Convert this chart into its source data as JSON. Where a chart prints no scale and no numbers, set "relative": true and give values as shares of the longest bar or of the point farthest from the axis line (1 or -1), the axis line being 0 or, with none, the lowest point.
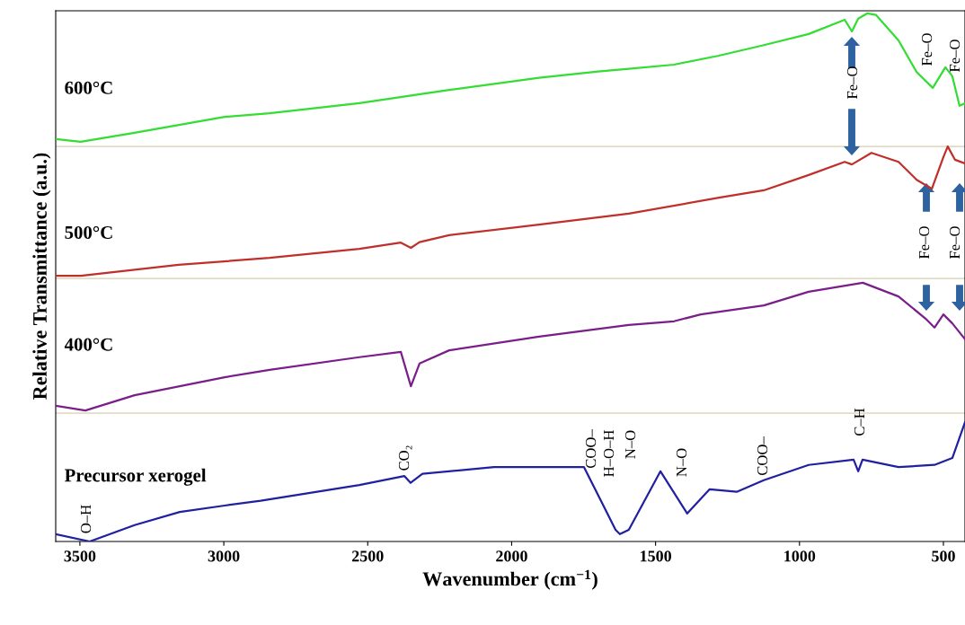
{
  "chart_data": {
    "type": "line",
    "relative": true,
    "xlabel": "Wavenumber (cm$^{−1}$)",
    "ylabel": "Relative Transmittance (a.u.)",
    "xlim": [
      3584,
      425
    ],
    "xticks": [
      3500,
      3000,
      2500,
      2000,
      1500,
      1000,
      500
    ],
    "legend": false,
    "grid": false,
    "series": [
      {
        "name": "600°C",
        "color": "#33dd33",
        "x": [
          3584,
          3497,
          3310,
          2997,
          2841,
          2529,
          2217,
          1905,
          1700,
          1593,
          1436,
          1280,
          1124,
          968,
          843,
          818,
          796,
          765,
          734,
          656,
          593,
          537,
          493,
          469,
          444,
          425
        ],
        "values": [
          0.762,
          0.757,
          0.774,
          0.804,
          0.811,
          0.83,
          0.855,
          0.878,
          0.89,
          0.895,
          0.903,
          0.92,
          0.94,
          0.961,
          0.988,
          0.966,
          0.99,
          1.0,
          0.997,
          0.949,
          0.889,
          0.859,
          0.898,
          0.881,
          0.825,
          0.83
        ]
      },
      {
        "name": "500°C",
        "color": "#c0302a",
        "x": [
          3584,
          3497,
          3157,
          2841,
          2529,
          2385,
          2350,
          2320,
          2217,
          1905,
          1593,
          1280,
          1124,
          968,
          843,
          818,
          750,
          656,
          593,
          540,
          500,
          485,
          460,
          425
        ],
        "values": [
          0.503,
          0.503,
          0.524,
          0.537,
          0.554,
          0.566,
          0.556,
          0.567,
          0.58,
          0.6,
          0.621,
          0.651,
          0.665,
          0.694,
          0.719,
          0.714,
          0.736,
          0.719,
          0.685,
          0.668,
          0.728,
          0.748,
          0.723,
          0.716
        ]
      },
      {
        "name": "400°C",
        "color": "#7a1f8a",
        "x": [
          3584,
          3481,
          3310,
          2997,
          2841,
          2529,
          2385,
          2350,
          2320,
          2217,
          1905,
          1593,
          1436,
          1343,
          1124,
          968,
          780,
          656,
          562,
          531,
          500,
          469,
          425
        ],
        "values": [
          0.257,
          0.248,
          0.277,
          0.311,
          0.325,
          0.349,
          0.359,
          0.294,
          0.337,
          0.362,
          0.388,
          0.41,
          0.417,
          0.43,
          0.447,
          0.473,
          0.49,
          0.464,
          0.422,
          0.405,
          0.43,
          0.413,
          0.383
        ]
      },
      {
        "name": "Precursor xerogel",
        "color": "#2020a0",
        "x": [
          3584,
          3466,
          3310,
          3153,
          2997,
          2872,
          2529,
          2373,
          2351,
          2310,
          2061,
          1749,
          1686,
          1639,
          1624,
          1593,
          1483,
          1390,
          1312,
          1218,
          1124,
          968,
          812,
          796,
          781,
          656,
          531,
          469,
          425
        ],
        "values": [
          0.014,
          0.0,
          0.031,
          0.056,
          0.068,
          0.077,
          0.107,
          0.124,
          0.111,
          0.128,
          0.141,
          0.141,
          0.073,
          0.022,
          0.014,
          0.022,
          0.133,
          0.053,
          0.099,
          0.094,
          0.116,
          0.145,
          0.155,
          0.133,
          0.155,
          0.141,
          0.145,
          0.158,
          0.226
        ]
      }
    ],
    "ref_lines": [
      {
        "axis": "y",
        "value": 0.748,
        "color": "#e2dcc4"
      },
      {
        "axis": "y",
        "value": 0.498,
        "color": "#e2dcc4"
      },
      {
        "axis": "y",
        "value": 0.243,
        "color": "#e2dcc4"
      }
    ],
    "annotations": [
      "O–H",
      "CO₂",
      "COO–",
      "H–O–H",
      "N–O",
      "N–O",
      "COO–",
      "C–H",
      "Fe–O",
      "Fe–O",
      "Fe–O",
      "Fe–O",
      "Fe–O"
    ]
  }
}
